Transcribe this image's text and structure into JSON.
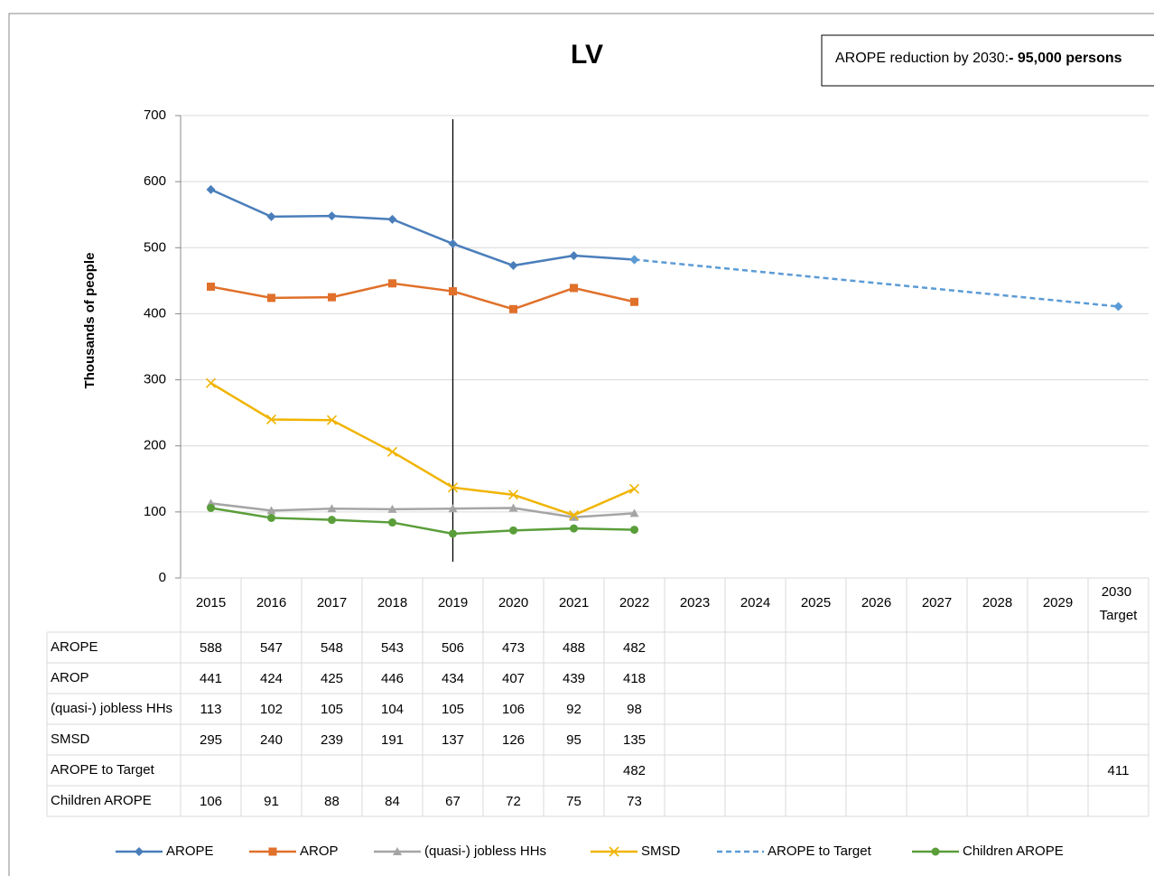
{
  "chart_data": {
    "type": "line",
    "title": "LV",
    "annotation": {
      "text": "AROPE reduction by 2030:",
      "highlight": "- 95,000 persons"
    },
    "y_label": "Thousands of people",
    "categories": [
      "2015",
      "2016",
      "2017",
      "2018",
      "2019",
      "2020",
      "2021",
      "2022",
      "2023",
      "2024",
      "2025",
      "2026",
      "2027",
      "2028",
      "2029",
      "2030 Target"
    ],
    "reference_category": "2019",
    "ylim": [
      0,
      700
    ],
    "yticks": [
      0,
      100,
      200,
      300,
      400,
      500,
      600,
      700
    ],
    "grid": true,
    "series": [
      {
        "name": "AROPE",
        "color": "#4a7ebb",
        "marker": "diamond",
        "dashed": false,
        "values": [
          588,
          547,
          548,
          543,
          506,
          473,
          488,
          482,
          null,
          null,
          null,
          null,
          null,
          null,
          null,
          null
        ]
      },
      {
        "name": "AROP",
        "color": "#e0702a",
        "marker": "square",
        "dashed": false,
        "values": [
          441,
          424,
          425,
          446,
          434,
          407,
          439,
          418,
          null,
          null,
          null,
          null,
          null,
          null,
          null,
          null
        ]
      },
      {
        "name": "(quasi-) jobless HHs",
        "color": "#a5a5a5",
        "marker": "triangle",
        "dashed": false,
        "values": [
          113,
          102,
          105,
          104,
          105,
          106,
          92,
          98,
          null,
          null,
          null,
          null,
          null,
          null,
          null,
          null
        ]
      },
      {
        "name": "SMSD",
        "color": "#f0b400",
        "marker": "x",
        "dashed": false,
        "values": [
          295,
          240,
          239,
          191,
          137,
          126,
          95,
          135,
          null,
          null,
          null,
          null,
          null,
          null,
          null,
          null
        ]
      },
      {
        "name": "AROPE to Target",
        "color": "#5b9bd5",
        "marker": "diamond",
        "dashed": true,
        "connect_gaps": true,
        "values": [
          null,
          null,
          null,
          null,
          null,
          null,
          null,
          482,
          null,
          null,
          null,
          null,
          null,
          null,
          null,
          411
        ]
      },
      {
        "name": "Children AROPE",
        "color": "#5a9e3a",
        "marker": "circle",
        "dashed": false,
        "values": [
          106,
          91,
          88,
          84,
          67,
          72,
          75,
          73,
          null,
          null,
          null,
          null,
          null,
          null,
          null,
          null
        ]
      }
    ]
  }
}
